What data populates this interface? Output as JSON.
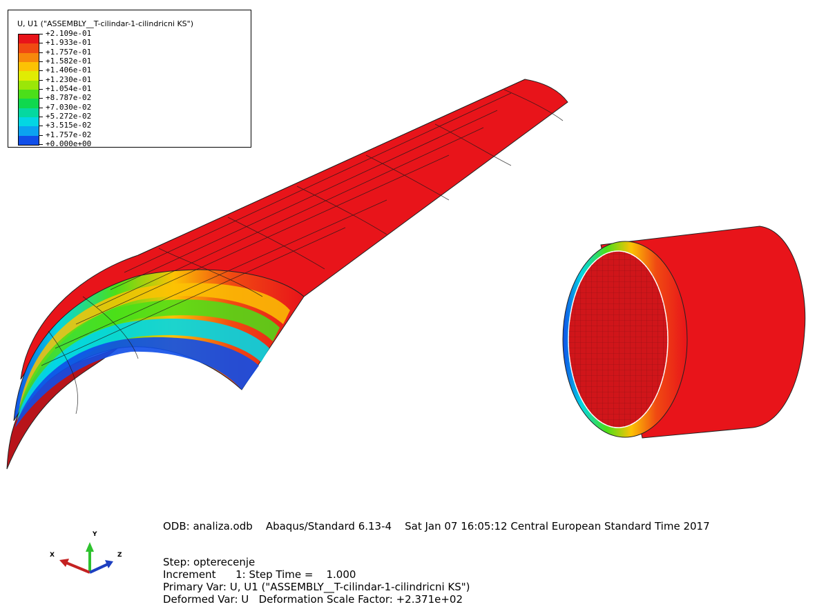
{
  "legend": {
    "title": "U, U1 (\"ASSEMBLY__T-cilindar-1-cilindricni KS\")",
    "values": [
      "+2.109e-01",
      "+1.933e-01",
      "+1.757e-01",
      "+1.582e-01",
      "+1.406e-01",
      "+1.230e-01",
      "+1.054e-01",
      "+8.787e-02",
      "+7.030e-02",
      "+5.272e-02",
      "+3.515e-02",
      "+1.757e-02",
      "+0.000e+00"
    ],
    "colors": [
      "#e8141a",
      "#f04a12",
      "#f7880b",
      "#fcc204",
      "#e0ec03",
      "#9be608",
      "#4bdf19",
      "#0fd84e",
      "#05d8a0",
      "#03d6e3",
      "#0ba2f0",
      "#104ee8"
    ]
  },
  "triad": {
    "x": "X",
    "y": "Y",
    "z": "Z"
  },
  "info": {
    "odb_line": "ODB: analiza.odb    Abaqus/Standard 6.13-4    Sat Jan 07 16:05:12 Central European Standard Time 2017",
    "step_line": "Step: opterecenje",
    "increment_line": "Increment      1: Step Time =    1.000",
    "primary_line": "Primary Var: U, U1 (\"ASSEMBLY__T-cilindar-1-cilindricni KS\")",
    "deformed_line": "Deformed Var: U   Deformation Scale Factor: +2.371e+02"
  }
}
